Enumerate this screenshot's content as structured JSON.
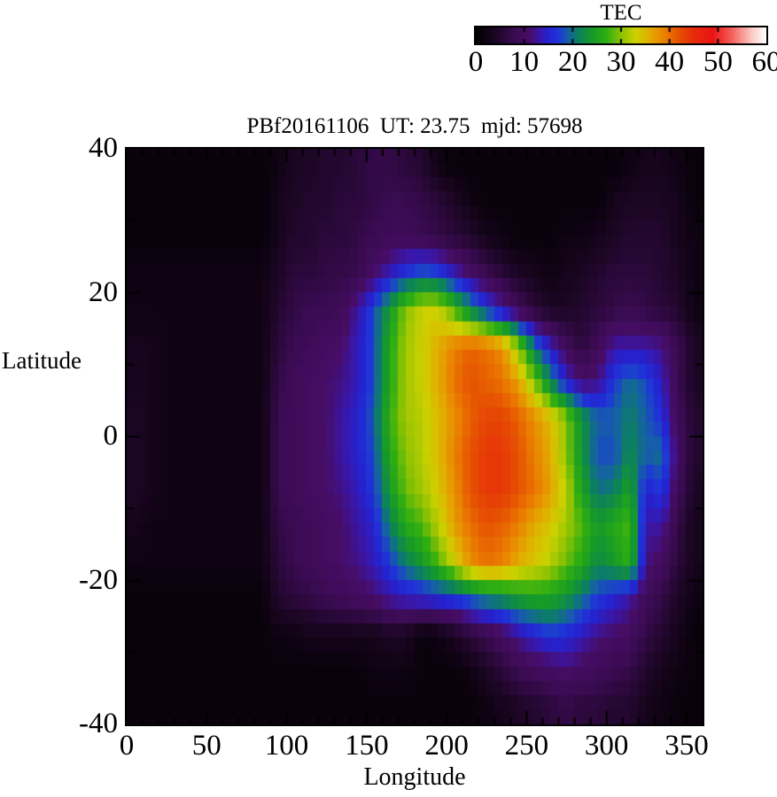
{
  "colorbar": {
    "title": "TEC",
    "min": 0,
    "max": 60,
    "ticks": [
      0,
      10,
      20,
      30,
      40,
      50,
      60
    ],
    "stops": [
      [
        0,
        "#020002"
      ],
      [
        4,
        "#1c0624"
      ],
      [
        8,
        "#3a0b52"
      ],
      [
        11,
        "#470d66"
      ],
      [
        13,
        "#3b16a5"
      ],
      [
        15,
        "#2422cf"
      ],
      [
        17,
        "#1f35d8"
      ],
      [
        19,
        "#155fa8"
      ],
      [
        21,
        "#0c7f62"
      ],
      [
        24,
        "#169a28"
      ],
      [
        27,
        "#2fae12"
      ],
      [
        30,
        "#8cc203"
      ],
      [
        33,
        "#cdd100"
      ],
      [
        36,
        "#e2ac00"
      ],
      [
        39,
        "#ea8000"
      ],
      [
        42,
        "#e65102"
      ],
      [
        45,
        "#e62b0a"
      ],
      [
        49,
        "#ea1414"
      ],
      [
        53,
        "#f4625b"
      ],
      [
        57,
        "#fbc9c4"
      ],
      [
        60,
        "#ffffff"
      ]
    ]
  },
  "chart_data": {
    "type": "heatmap",
    "title": "PBf20161106  UT: 23.75  mjd: 57698",
    "xlabel": "Longitude",
    "ylabel": "Latitude",
    "xlim": [
      0,
      360
    ],
    "ylim": [
      -40,
      40
    ],
    "x_ticks": [
      0,
      50,
      100,
      150,
      200,
      250,
      300,
      350
    ],
    "y_ticks": [
      40,
      20,
      0,
      -20,
      -40
    ],
    "x_minor_step": 10,
    "y_minor_step": 10,
    "value_units": "TEC",
    "legend_position": "top-right-colorbar",
    "grid": {
      "lon_min": 0,
      "lon_cell": 10,
      "lat_max": 40,
      "lat_cell": 5,
      "values": [
        [
          1,
          1,
          1,
          1,
          1,
          1,
          1,
          1,
          1,
          2,
          4,
          4,
          5,
          5,
          6,
          7,
          7,
          6,
          5,
          2,
          1,
          1,
          1,
          1,
          1,
          1,
          1,
          1,
          1,
          1,
          1,
          2,
          3,
          3,
          2,
          1
        ],
        [
          1,
          1,
          1,
          1,
          1,
          1,
          1,
          1,
          1,
          3,
          4,
          5,
          5,
          6,
          6,
          7,
          8,
          8,
          7,
          6,
          4,
          2,
          1,
          1,
          1,
          1,
          1,
          1,
          1,
          1,
          3,
          4,
          4,
          4,
          3,
          1
        ],
        [
          1,
          1,
          1,
          1,
          1,
          1,
          1,
          1,
          1,
          3,
          5,
          5,
          6,
          6,
          7,
          8,
          9,
          9,
          8,
          7,
          6,
          5,
          3,
          2,
          1,
          1,
          1,
          2,
          2,
          3,
          4,
          5,
          5,
          5,
          3,
          2
        ],
        [
          2,
          2,
          2,
          2,
          2,
          2,
          2,
          2,
          2,
          4,
          6,
          6,
          7,
          7,
          8,
          11,
          14,
          17,
          19,
          18,
          14,
          11,
          8,
          6,
          4,
          3,
          2,
          3,
          4,
          5,
          6,
          6,
          6,
          5,
          4,
          2
        ],
        [
          2,
          2,
          2,
          2,
          2,
          2,
          2,
          2,
          2,
          5,
          7,
          8,
          8,
          9,
          13,
          18,
          24,
          30,
          33,
          33,
          28,
          22,
          17,
          13,
          9,
          6,
          4,
          4,
          5,
          6,
          7,
          8,
          7,
          6,
          5,
          2
        ],
        [
          3,
          3,
          2,
          2,
          2,
          2,
          2,
          2,
          2,
          6,
          8,
          9,
          10,
          11,
          14,
          18,
          26,
          31,
          33,
          36,
          39,
          41,
          40,
          38,
          30,
          20,
          14,
          9,
          6,
          9,
          13,
          13,
          13,
          12,
          8,
          4
        ],
        [
          3,
          3,
          2,
          2,
          2,
          2,
          2,
          2,
          2,
          7,
          9,
          10,
          11,
          12,
          14,
          18,
          26,
          31,
          33,
          36,
          40,
          42,
          41,
          40,
          37,
          30,
          22,
          15,
          11,
          12,
          17,
          20,
          18,
          14,
          8,
          4
        ],
        [
          4,
          3,
          2,
          2,
          2,
          2,
          2,
          2,
          2,
          8,
          9,
          10,
          11,
          13,
          15,
          19,
          27,
          31,
          32,
          35,
          38,
          41,
          43,
          43,
          41,
          38,
          35,
          30,
          23,
          19,
          19,
          21,
          19,
          16,
          9,
          5
        ],
        [
          4,
          3,
          2,
          2,
          2,
          2,
          2,
          2,
          2,
          8,
          9,
          10,
          11,
          13,
          15,
          18,
          26,
          30,
          32,
          35,
          39,
          42,
          44,
          44,
          42,
          39,
          36,
          30,
          23,
          18,
          18,
          22,
          19,
          20,
          10,
          5
        ],
        [
          4,
          3,
          2,
          2,
          2,
          2,
          2,
          2,
          2,
          8,
          9,
          10,
          11,
          12,
          14,
          17,
          24,
          29,
          31,
          34,
          38,
          42,
          44,
          44,
          42,
          40,
          37,
          32,
          25,
          20,
          21,
          25,
          15,
          17,
          9,
          4
        ],
        [
          3,
          2,
          2,
          2,
          2,
          2,
          2,
          2,
          2,
          7,
          8,
          9,
          10,
          11,
          13,
          15,
          21,
          26,
          28,
          32,
          37,
          40,
          42,
          41,
          39,
          36,
          34,
          31,
          28,
          24,
          26,
          28,
          13,
          13,
          7,
          3
        ],
        [
          2,
          2,
          2,
          2,
          2,
          2,
          2,
          2,
          2,
          6,
          8,
          9,
          10,
          11,
          12,
          14,
          17,
          21,
          24,
          28,
          33,
          38,
          40,
          39,
          36,
          34,
          32,
          29,
          26,
          22,
          24,
          27,
          12,
          10,
          6,
          3
        ],
        [
          1,
          1,
          1,
          1,
          1,
          1,
          1,
          1,
          1,
          5,
          6,
          7,
          8,
          9,
          10,
          11,
          13,
          14,
          15,
          16,
          17,
          19,
          21,
          22,
          24,
          25,
          25,
          23,
          20,
          17,
          15,
          13,
          9,
          7,
          4,
          2
        ],
        [
          1,
          1,
          1,
          1,
          1,
          1,
          1,
          1,
          1,
          2,
          2,
          3,
          3,
          3,
          3,
          3,
          4,
          4,
          1,
          2,
          4,
          6,
          8,
          10,
          13,
          15,
          17,
          16,
          14,
          12,
          11,
          10,
          7,
          5,
          3,
          1
        ],
        [
          1,
          1,
          1,
          1,
          1,
          1,
          1,
          1,
          1,
          1,
          1,
          1,
          1,
          1,
          1,
          2,
          2,
          2,
          1,
          1,
          1,
          2,
          4,
          6,
          8,
          9,
          10,
          11,
          10,
          9,
          8,
          7,
          5,
          3,
          2,
          1
        ],
        [
          1,
          1,
          1,
          1,
          1,
          1,
          1,
          1,
          1,
          1,
          1,
          1,
          1,
          1,
          1,
          1,
          1,
          1,
          1,
          1,
          1,
          1,
          2,
          3,
          4,
          5,
          6,
          7,
          6,
          6,
          5,
          5,
          3,
          2,
          1,
          1
        ]
      ]
    }
  }
}
